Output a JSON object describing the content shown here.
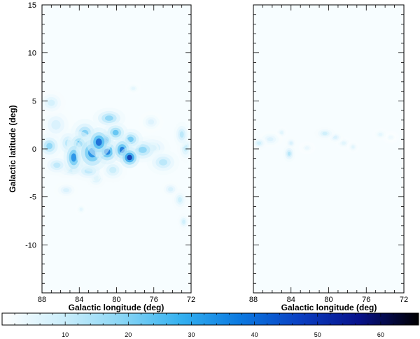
{
  "chart_data": {
    "type": "heatmap",
    "panels": [
      {
        "xlabel": "Galactic longitude (deg)",
        "ylabel": "Galactic latitude (deg)",
        "xlim": [
          88,
          72
        ],
        "ylim": [
          -15,
          15
        ],
        "xticks": [
          "88",
          "84",
          "80",
          "76",
          "72"
        ],
        "yticks": [
          "15",
          "10",
          "5",
          "0",
          "-5",
          "-10"
        ],
        "emission_blobs": [
          {
            "l": 87.0,
            "b": 4.8,
            "sl": 0.7,
            "sb": 0.6,
            "v": 10
          },
          {
            "l": 86.5,
            "b": 2.5,
            "sl": 0.9,
            "sb": 0.9,
            "v": 9
          },
          {
            "l": 87.2,
            "b": 0.3,
            "sl": 0.6,
            "sb": 0.6,
            "v": 22
          },
          {
            "l": 85.2,
            "b": 0.6,
            "sl": 0.6,
            "sb": 0.7,
            "v": 15
          },
          {
            "l": 84.6,
            "b": -0.9,
            "sl": 0.5,
            "sb": 0.8,
            "v": 40
          },
          {
            "l": 84.0,
            "b": 0.5,
            "sl": 0.6,
            "sb": 0.6,
            "v": 28
          },
          {
            "l": 83.4,
            "b": 1.6,
            "sl": 0.7,
            "sb": 0.7,
            "v": 24
          },
          {
            "l": 82.6,
            "b": -0.4,
            "sl": 0.8,
            "sb": 0.9,
            "v": 40
          },
          {
            "l": 81.9,
            "b": 0.7,
            "sl": 0.6,
            "sb": 0.7,
            "v": 48
          },
          {
            "l": 81.2,
            "b": 0.9,
            "sl": 0.4,
            "sb": 0.4,
            "v": 45
          },
          {
            "l": 81.0,
            "b": -0.3,
            "sl": 0.6,
            "sb": 0.6,
            "v": 44
          },
          {
            "l": 80.8,
            "b": 3.2,
            "sl": 0.8,
            "sb": 0.5,
            "v": 22
          },
          {
            "l": 80.1,
            "b": 1.7,
            "sl": 0.6,
            "sb": 0.5,
            "v": 28
          },
          {
            "l": 79.4,
            "b": -0.1,
            "sl": 0.5,
            "sb": 0.6,
            "v": 45
          },
          {
            "l": 78.6,
            "b": -0.9,
            "sl": 0.5,
            "sb": 0.5,
            "v": 58
          },
          {
            "l": 78.5,
            "b": 1.0,
            "sl": 0.6,
            "sb": 0.5,
            "v": 26
          },
          {
            "l": 77.2,
            "b": -0.1,
            "sl": 0.8,
            "sb": 0.6,
            "v": 22
          },
          {
            "l": 76.2,
            "b": 0.1,
            "sl": 0.9,
            "sb": 0.6,
            "v": 14
          },
          {
            "l": 75.0,
            "b": -1.4,
            "sl": 0.8,
            "sb": 0.6,
            "v": 15
          },
          {
            "l": 73.0,
            "b": 1.5,
            "sl": 0.4,
            "sb": 0.6,
            "v": 15
          },
          {
            "l": 72.6,
            "b": 0.1,
            "sl": 0.4,
            "sb": 0.7,
            "v": 12
          },
          {
            "l": 86.4,
            "b": -1.7,
            "sl": 0.7,
            "sb": 0.5,
            "v": 14
          },
          {
            "l": 84.6,
            "b": -2.2,
            "sl": 1.1,
            "sb": 0.4,
            "v": 13
          },
          {
            "l": 83.0,
            "b": -2.3,
            "sl": 0.8,
            "sb": 0.5,
            "v": 14
          },
          {
            "l": 82.2,
            "b": -3.0,
            "sl": 0.5,
            "sb": 0.5,
            "v": 12
          },
          {
            "l": 80.4,
            "b": -2.2,
            "sl": 0.7,
            "sb": 0.6,
            "v": 12
          },
          {
            "l": 85.4,
            "b": -4.3,
            "sl": 0.6,
            "sb": 0.4,
            "v": 9
          },
          {
            "l": 83.8,
            "b": -6.3,
            "sl": 0.3,
            "sb": 0.3,
            "v": 6
          },
          {
            "l": 74.2,
            "b": -4.2,
            "sl": 0.5,
            "sb": 0.4,
            "v": 9
          },
          {
            "l": 73.2,
            "b": -5.3,
            "sl": 0.4,
            "sb": 0.5,
            "v": 11
          },
          {
            "l": 72.8,
            "b": -7.6,
            "sl": 0.3,
            "sb": 0.4,
            "v": 11
          },
          {
            "l": 78.2,
            "b": 6.3,
            "sl": 0.4,
            "sb": 0.3,
            "v": 6
          },
          {
            "l": 76.3,
            "b": 2.8,
            "sl": 0.6,
            "sb": 0.5,
            "v": 8
          }
        ]
      },
      {
        "xlabel": "Galactic longitude (deg)",
        "ylabel": "",
        "xlim": [
          88,
          72
        ],
        "ylim": [
          -15,
          15
        ],
        "xticks": [
          "88",
          "84",
          "80",
          "76",
          "72"
        ],
        "yticks": [],
        "emission_blobs": [
          {
            "l": 87.4,
            "b": 0.6,
            "sl": 0.4,
            "sb": 0.3,
            "v": 11
          },
          {
            "l": 86.2,
            "b": 1.0,
            "sl": 0.6,
            "sb": 0.4,
            "v": 8
          },
          {
            "l": 85.0,
            "b": 1.7,
            "sl": 0.3,
            "sb": 0.3,
            "v": 7
          },
          {
            "l": 84.2,
            "b": -0.5,
            "sl": 0.3,
            "sb": 0.4,
            "v": 16
          },
          {
            "l": 84.0,
            "b": 0.6,
            "sl": 0.3,
            "sb": 0.3,
            "v": 9
          },
          {
            "l": 82.3,
            "b": 0.1,
            "sl": 0.4,
            "sb": 0.3,
            "v": 5
          },
          {
            "l": 80.4,
            "b": 1.6,
            "sl": 0.5,
            "sb": 0.3,
            "v": 11
          },
          {
            "l": 79.3,
            "b": 1.2,
            "sl": 0.4,
            "sb": 0.3,
            "v": 9
          },
          {
            "l": 78.4,
            "b": 0.6,
            "sl": 0.4,
            "sb": 0.3,
            "v": 7
          },
          {
            "l": 77.4,
            "b": 0.2,
            "sl": 0.3,
            "sb": 0.3,
            "v": 7
          },
          {
            "l": 74.5,
            "b": 1.5,
            "sl": 0.4,
            "sb": 0.3,
            "v": 6
          },
          {
            "l": 73.4,
            "b": 1.2,
            "sl": 0.4,
            "sb": 0.3,
            "v": 4
          }
        ]
      }
    ],
    "colorbar": {
      "range": [
        0,
        66
      ],
      "ticks": [
        "10",
        "20",
        "30",
        "40",
        "50",
        "60"
      ],
      "stops": [
        "#ffffff",
        "#cdeefb",
        "#8bd6f5",
        "#34b1f0",
        "#0b79e0",
        "#0a3fc2",
        "#07118a",
        "#000000"
      ]
    }
  }
}
